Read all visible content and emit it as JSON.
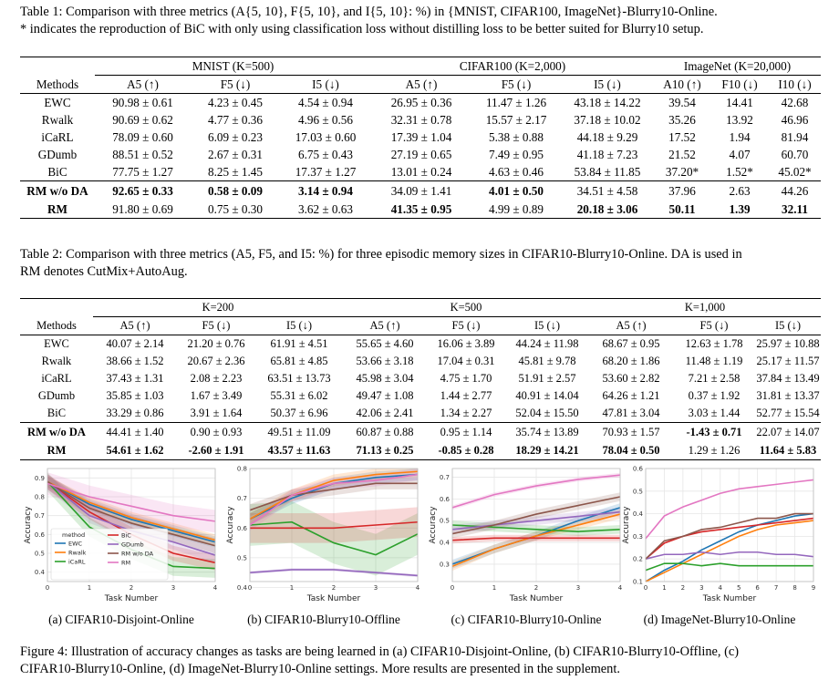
{
  "table1": {
    "caption_line1": "Table 1: Comparison with three metrics (A{5, 10}, F{5, 10}, and I{5, 10}: %) in {MNIST, CIFAR100, ImageNet}-Blurry10-Online.",
    "caption_line2": "* indicates the reproduction of BiC with only using classification loss without distilling loss to be better suited for Blurry10 setup.",
    "groups": [
      "MNIST (K=500)",
      "CIFAR100 (K=2,000)",
      "ImageNet (K=20,000)"
    ],
    "methods_header": "Methods",
    "col_headers": [
      "A5 (↑)",
      "F5 (↓)",
      "I5 (↓)",
      "A5 (↑)",
      "F5 (↓)",
      "I5 (↓)",
      "A10 (↑)",
      "F10 (↓)",
      "I10 (↓)"
    ],
    "rows": [
      {
        "method": "EWC",
        "cells": [
          "90.98 ± 0.61",
          "4.23 ± 0.45",
          "4.54 ± 0.94",
          "26.95 ± 0.36",
          "11.47 ± 1.26",
          "43.18 ± 14.22",
          "39.54",
          "14.41",
          "42.68"
        ]
      },
      {
        "method": "Rwalk",
        "cells": [
          "90.69 ± 0.62",
          "4.77 ± 0.36",
          "4.96 ± 0.56",
          "32.31 ± 0.78",
          "15.57 ± 2.17",
          "37.18 ± 10.02",
          "35.26",
          "13.92",
          "46.96"
        ]
      },
      {
        "method": "iCaRL",
        "cells": [
          "78.09 ± 0.60",
          "6.09 ± 0.23",
          "17.03 ± 0.60",
          "17.39 ± 1.04",
          "5.38 ± 0.88",
          "44.18 ± 9.29",
          "17.52",
          "1.94",
          "81.94"
        ]
      },
      {
        "method": "GDumb",
        "cells": [
          "88.51 ± 0.52",
          "2.67 ± 0.31",
          "6.75 ± 0.43",
          "27.19 ± 0.65",
          "7.49 ± 0.95",
          "41.18 ± 7.23",
          "21.52",
          "4.07",
          "60.70"
        ]
      },
      {
        "method": "BiC",
        "cells": [
          "77.75 ± 1.27",
          "8.25 ± 1.45",
          "17.37 ± 1.27",
          "13.01 ± 0.24",
          "4.63 ± 0.46",
          "53.84 ± 11.85",
          "37.20*",
          "1.52*",
          "45.02*"
        ]
      },
      {
        "method": "RM w/o DA",
        "cells": [
          "92.65 ± 0.33",
          "0.58 ± 0.09",
          "3.14 ± 0.94",
          "34.09 ± 1.41",
          "4.01 ± 0.50",
          "34.51 ± 4.58",
          "37.96",
          "2.63",
          "44.26"
        ],
        "bold": [
          0,
          1,
          2,
          4
        ]
      },
      {
        "method": "RM",
        "cells": [
          "91.80 ± 0.69",
          "0.75 ± 0.30",
          "3.62 ± 0.63",
          "41.35 ± 0.95",
          "4.99 ± 0.89",
          "20.18 ± 3.06",
          "50.11",
          "1.39",
          "32.11"
        ],
        "bold": [
          3,
          5,
          6,
          7,
          8
        ]
      }
    ]
  },
  "table2": {
    "caption_line1": "Table 2: Comparison with three metrics (A5, F5, and I5: %) for three episodic memory sizes in CIFAR10-Blurry10-Online. DA is used in",
    "caption_line2": "RM denotes CutMix+AutoAug.",
    "groups": [
      "K=200",
      "K=500",
      "K=1,000"
    ],
    "methods_header": "Methods",
    "col_headers": [
      "A5 (↑)",
      "F5 (↓)",
      "I5 (↓)",
      "A5 (↑)",
      "F5 (↓)",
      "I5 (↓)",
      "A5 (↑)",
      "F5 (↓)",
      "I5 (↓)"
    ],
    "rows": [
      {
        "method": "EWC",
        "cells": [
          "40.07 ± 2.14",
          "21.20 ± 0.76",
          "61.91 ± 4.51",
          "55.65 ± 4.60",
          "16.06 ± 3.89",
          "44.24 ± 11.98",
          "68.67 ± 0.95",
          "12.63 ± 1.78",
          "25.97 ± 10.88"
        ]
      },
      {
        "method": "Rwalk",
        "cells": [
          "38.66 ± 1.52",
          "20.67 ± 2.36",
          "65.81 ± 4.85",
          "53.66 ± 3.18",
          "17.04 ± 0.31",
          "45.81 ± 9.78",
          "68.20 ± 1.86",
          "11.48 ± 1.19",
          "25.17 ± 11.57"
        ]
      },
      {
        "method": "iCaRL",
        "cells": [
          "37.43 ± 1.31",
          "2.08 ± 2.23",
          "63.51 ± 13.73",
          "45.98 ± 3.04",
          "4.75 ± 1.70",
          "51.91 ± 2.57",
          "53.60 ± 2.82",
          "7.21 ± 2.58",
          "37.84 ± 13.49"
        ]
      },
      {
        "method": "GDumb",
        "cells": [
          "35.85 ± 1.03",
          "1.67 ± 3.49",
          "55.31 ± 6.02",
          "49.47 ± 1.08",
          "1.44 ± 2.77",
          "40.91 ± 14.04",
          "64.26 ± 1.21",
          "0.37 ± 1.92",
          "31.81 ± 13.37"
        ]
      },
      {
        "method": "BiC",
        "cells": [
          "33.29 ± 0.86",
          "3.91 ± 1.64",
          "50.37 ± 6.96",
          "42.06 ± 2.41",
          "1.34 ± 2.27",
          "52.04 ± 15.50",
          "47.81 ± 3.04",
          "3.03 ± 1.44",
          "52.77 ± 15.54"
        ]
      },
      {
        "method": "RM w/o DA",
        "cells": [
          "44.41 ± 1.40",
          "0.90 ± 0.93",
          "49.51 ± 11.09",
          "60.87 ± 0.88",
          "0.95 ± 1.14",
          "35.74 ± 13.89",
          "70.93 ± 1.57",
          "-1.43 ± 0.71",
          "22.07 ± 14.07"
        ],
        "bold": [
          7
        ]
      },
      {
        "method": "RM",
        "cells": [
          "54.61 ± 1.62",
          "-2.60 ± 1.91",
          "43.57 ± 11.63",
          "71.13 ± 0.25",
          "-0.85 ± 0.28",
          "18.29 ± 14.21",
          "78.04 ± 0.50",
          "1.29 ± 1.26",
          "11.64 ± 5.83"
        ],
        "bold": [
          0,
          1,
          2,
          3,
          4,
          5,
          6,
          8
        ]
      }
    ]
  },
  "figure": {
    "xlabel": "Task Number",
    "ylabel": "Accuracy",
    "subcaptions": [
      "(a) CIFAR10-Disjoint-Online",
      "(b) CIFAR10-Blurry10-Offline",
      "(c) CIFAR10-Blurry10-Online",
      "(d) ImageNet-Blurry10-Online"
    ],
    "caption_line1": "Figure 4: Illustration of accuracy changes as tasks are being learned in (a) CIFAR10-Disjoint-Online, (b) CIFAR10-Blurry10-Offline, (c)",
    "caption_line2": "CIFAR10-Blurry10-Online, (d) ImageNet-Blurry10-Online settings. More results are presented in the supplement.",
    "legend_title": "method",
    "colors": {
      "EWC": "#1f77b4",
      "Rwalk": "#ff7f0e",
      "iCaRL": "#2ca02c",
      "BiC": "#d62728",
      "GDumb": "#9467bd",
      "RM w/o DA": "#8c564b",
      "RM": "#e377c2"
    }
  },
  "chart_data": [
    {
      "type": "line",
      "title": "(a) CIFAR10-Disjoint-Online",
      "xlabel": "Task Number",
      "ylabel": "Accuracy",
      "x": [
        0,
        1,
        2,
        3,
        4
      ],
      "xticks": [
        "0",
        "1",
        "2",
        "3",
        "4"
      ],
      "yticks": [
        "0.4",
        "0.5",
        "0.6",
        "0.7",
        "0.8",
        "0.9"
      ],
      "ylim": [
        0.35,
        0.95
      ],
      "legend": "lower-left",
      "series": [
        {
          "name": "EWC",
          "values": [
            0.88,
            0.76,
            0.68,
            0.62,
            0.56
          ],
          "band": 0.03
        },
        {
          "name": "Rwalk",
          "values": [
            0.88,
            0.77,
            0.69,
            0.63,
            0.57
          ],
          "band": 0.03
        },
        {
          "name": "iCaRL",
          "values": [
            0.88,
            0.64,
            0.52,
            0.43,
            0.42
          ],
          "band": 0.05
        },
        {
          "name": "BiC",
          "values": [
            0.88,
            0.72,
            0.6,
            0.5,
            0.45
          ],
          "band": 0.04
        },
        {
          "name": "GDumb",
          "values": [
            0.88,
            0.7,
            0.62,
            0.56,
            0.49
          ],
          "band": 0.04
        },
        {
          "name": "RM w/o DA",
          "values": [
            0.88,
            0.74,
            0.66,
            0.6,
            0.54
          ],
          "band": 0.04
        },
        {
          "name": "RM",
          "values": [
            0.87,
            0.8,
            0.75,
            0.7,
            0.67
          ],
          "band": 0.06
        }
      ]
    },
    {
      "type": "line",
      "title": "(b) CIFAR10-Blurry10-Offline",
      "xlabel": "Task Number",
      "ylabel": "Accuracy",
      "x": [
        0,
        1,
        2,
        3,
        4
      ],
      "xticks": [
        "0",
        "1",
        "2",
        "3",
        "4"
      ],
      "yticks": [
        "0.4",
        "0.5",
        "0.6",
        "0.7",
        "0.8"
      ],
      "ylim": [
        0.42,
        0.8
      ],
      "series": [
        {
          "name": "EWC",
          "values": [
            0.63,
            0.7,
            0.75,
            0.77,
            0.78
          ],
          "band": 0.02
        },
        {
          "name": "Rwalk",
          "values": [
            0.63,
            0.71,
            0.76,
            0.78,
            0.79
          ],
          "band": 0.02
        },
        {
          "name": "iCaRL",
          "values": [
            0.61,
            0.62,
            0.55,
            0.51,
            0.58
          ],
          "band": 0.07
        },
        {
          "name": "BiC",
          "values": [
            0.6,
            0.6,
            0.6,
            0.61,
            0.62
          ],
          "band": 0.05
        },
        {
          "name": "GDumb",
          "values": [
            0.45,
            0.46,
            0.46,
            0.45,
            0.44
          ],
          "band": 0.005
        },
        {
          "name": "RM w/o DA",
          "values": [
            0.66,
            0.71,
            0.73,
            0.75,
            0.75
          ],
          "band": 0.02
        },
        {
          "name": "RM",
          "values": [
            0.61,
            0.71,
            0.75,
            0.76,
            0.78
          ],
          "band": 0.02
        }
      ]
    },
    {
      "type": "line",
      "title": "(c) CIFAR10-Blurry10-Online",
      "xlabel": "Task Number",
      "ylabel": "Accuracy",
      "x": [
        0,
        1,
        2,
        3,
        4
      ],
      "xticks": [
        "0",
        "1",
        "2",
        "3",
        "4"
      ],
      "yticks": [
        "0.3",
        "0.4",
        "0.5",
        "0.6",
        "0.7"
      ],
      "ylim": [
        0.22,
        0.74
      ],
      "series": [
        {
          "name": "EWC",
          "values": [
            0.3,
            0.37,
            0.43,
            0.5,
            0.56
          ],
          "band": 0.02
        },
        {
          "name": "Rwalk",
          "values": [
            0.29,
            0.37,
            0.43,
            0.48,
            0.53
          ],
          "band": 0.02
        },
        {
          "name": "iCaRL",
          "values": [
            0.48,
            0.47,
            0.46,
            0.45,
            0.46
          ],
          "band": 0.02
        },
        {
          "name": "BiC",
          "values": [
            0.41,
            0.42,
            0.42,
            0.42,
            0.42
          ],
          "band": 0.015
        },
        {
          "name": "GDumb",
          "values": [
            0.46,
            0.48,
            0.5,
            0.52,
            0.54
          ],
          "band": 0.02
        },
        {
          "name": "RM w/o DA",
          "values": [
            0.44,
            0.48,
            0.53,
            0.57,
            0.61
          ],
          "band": 0.02
        },
        {
          "name": "RM",
          "values": [
            0.56,
            0.62,
            0.66,
            0.69,
            0.71
          ],
          "band": 0.01
        }
      ]
    },
    {
      "type": "line",
      "title": "(d) ImageNet-Blurry10-Online",
      "xlabel": "Task Number",
      "ylabel": "Accuracy",
      "x": [
        0,
        1,
        2,
        3,
        4,
        5,
        6,
        7,
        8,
        9
      ],
      "xticks": [
        "0",
        "1",
        "2",
        "3",
        "4",
        "5",
        "6",
        "7",
        "8",
        "9"
      ],
      "yticks": [
        "0.1",
        "0.2",
        "0.3",
        "0.4",
        "0.5",
        "0.6"
      ],
      "ylim": [
        0.1,
        0.6
      ],
      "series": [
        {
          "name": "EWC",
          "values": [
            0.1,
            0.15,
            0.19,
            0.24,
            0.28,
            0.32,
            0.35,
            0.37,
            0.39,
            0.4
          ]
        },
        {
          "name": "Rwalk",
          "values": [
            0.1,
            0.14,
            0.18,
            0.22,
            0.26,
            0.3,
            0.33,
            0.35,
            0.36,
            0.37
          ]
        },
        {
          "name": "iCaRL",
          "values": [
            0.15,
            0.18,
            0.18,
            0.17,
            0.18,
            0.17,
            0.17,
            0.17,
            0.17,
            0.17
          ]
        },
        {
          "name": "BiC",
          "values": [
            0.2,
            0.27,
            0.3,
            0.32,
            0.33,
            0.34,
            0.35,
            0.36,
            0.37,
            0.38
          ]
        },
        {
          "name": "GDumb",
          "values": [
            0.2,
            0.22,
            0.22,
            0.23,
            0.22,
            0.23,
            0.23,
            0.22,
            0.22,
            0.21
          ]
        },
        {
          "name": "RM w/o DA",
          "values": [
            0.2,
            0.28,
            0.3,
            0.33,
            0.34,
            0.36,
            0.38,
            0.38,
            0.4,
            0.4
          ]
        },
        {
          "name": "RM",
          "values": [
            0.29,
            0.39,
            0.43,
            0.46,
            0.49,
            0.51,
            0.52,
            0.53,
            0.54,
            0.55
          ]
        }
      ]
    }
  ]
}
